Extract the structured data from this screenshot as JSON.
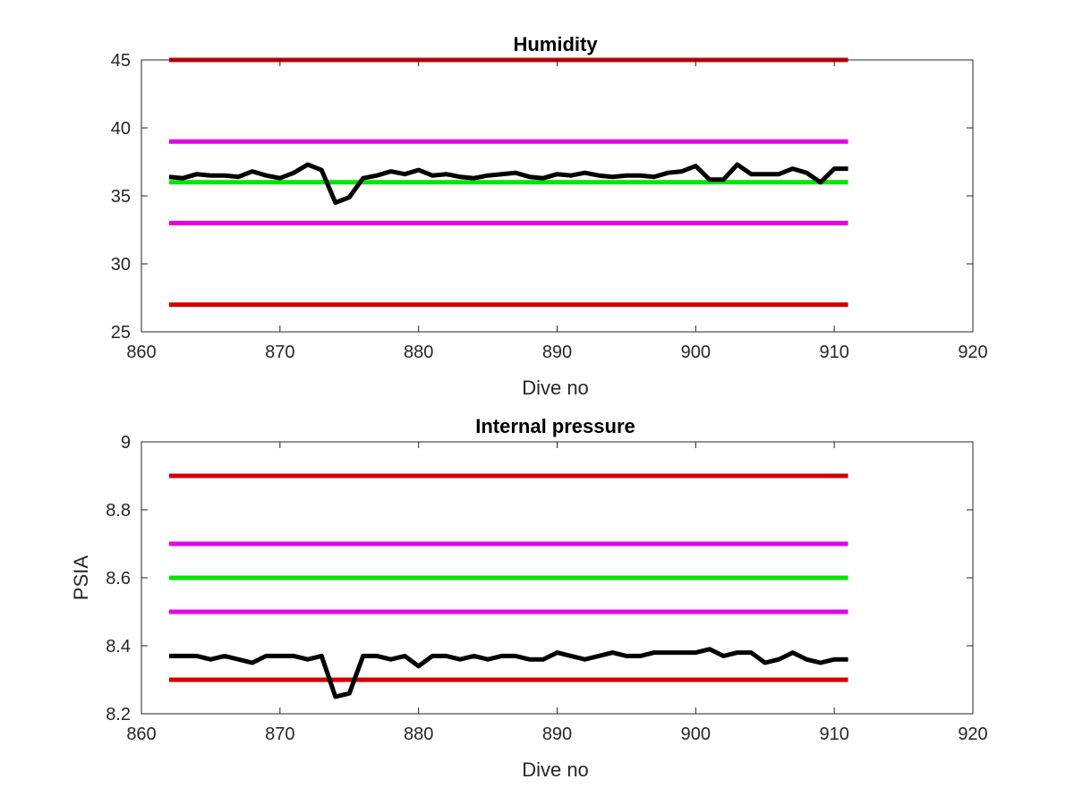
{
  "chart_data": [
    {
      "type": "line",
      "title": "Humidity",
      "xlabel": "Dive no",
      "ylabel": "",
      "xlim": [
        860,
        920
      ],
      "ylim": [
        25,
        45
      ],
      "xticks": [
        860,
        870,
        880,
        890,
        900,
        910,
        920
      ],
      "xtick_labels": [
        "860",
        "870",
        "880",
        "890",
        "900",
        "910",
        "920"
      ],
      "yticks": [
        25,
        30,
        35,
        40,
        45
      ],
      "ytick_labels": [
        "25",
        "30",
        "35",
        "40",
        "45"
      ],
      "grid": false,
      "series": [
        {
          "color": "#d40000",
          "x": [
            862,
            911
          ],
          "values": [
            45,
            45
          ]
        },
        {
          "color": "#e600e6",
          "x": [
            862,
            911
          ],
          "values": [
            39,
            39
          ]
        },
        {
          "color": "#00e600",
          "x": [
            862,
            911
          ],
          "values": [
            36,
            36
          ]
        },
        {
          "color": "#e600e6",
          "x": [
            862,
            911
          ],
          "values": [
            33,
            33
          ]
        },
        {
          "color": "#d40000",
          "x": [
            862,
            911
          ],
          "values": [
            27,
            27
          ]
        },
        {
          "color": "#000000",
          "x": [
            862,
            863,
            864,
            865,
            866,
            867,
            868,
            869,
            870,
            871,
            872,
            873,
            874,
            875,
            876,
            877,
            878,
            879,
            880,
            881,
            882,
            883,
            884,
            885,
            886,
            887,
            888,
            889,
            890,
            891,
            892,
            893,
            894,
            895,
            896,
            897,
            898,
            899,
            900,
            901,
            902,
            903,
            904,
            905,
            906,
            907,
            908,
            909,
            910,
            911
          ],
          "values": [
            36.4,
            36.3,
            36.6,
            36.5,
            36.5,
            36.4,
            36.8,
            36.5,
            36.3,
            36.7,
            37.3,
            36.9,
            34.5,
            34.9,
            36.3,
            36.5,
            36.8,
            36.6,
            36.9,
            36.5,
            36.6,
            36.4,
            36.3,
            36.5,
            36.6,
            36.7,
            36.4,
            36.3,
            36.6,
            36.5,
            36.7,
            36.5,
            36.4,
            36.5,
            36.5,
            36.4,
            36.7,
            36.8,
            37.2,
            36.2,
            36.2,
            37.3,
            36.6,
            36.6,
            36.6,
            37.0,
            36.7,
            36.0,
            37.0,
            37.0
          ]
        }
      ]
    },
    {
      "type": "line",
      "title": "Internal pressure",
      "xlabel": "Dive no",
      "ylabel": "PSIA",
      "xlim": [
        860,
        920
      ],
      "ylim": [
        8.2,
        9
      ],
      "xticks": [
        860,
        870,
        880,
        890,
        900,
        910,
        920
      ],
      "xtick_labels": [
        "860",
        "870",
        "880",
        "890",
        "900",
        "910",
        "920"
      ],
      "yticks": [
        8.2,
        8.4,
        8.6,
        8.8,
        9
      ],
      "ytick_labels": [
        "8.2",
        "8.4",
        "8.6",
        "8.8",
        "9"
      ],
      "grid": false,
      "series": [
        {
          "color": "#d40000",
          "x": [
            862,
            911
          ],
          "values": [
            8.9,
            8.9
          ]
        },
        {
          "color": "#e600e6",
          "x": [
            862,
            911
          ],
          "values": [
            8.7,
            8.7
          ]
        },
        {
          "color": "#00e600",
          "x": [
            862,
            911
          ],
          "values": [
            8.6,
            8.6
          ]
        },
        {
          "color": "#e600e6",
          "x": [
            862,
            911
          ],
          "values": [
            8.5,
            8.5
          ]
        },
        {
          "color": "#d40000",
          "x": [
            862,
            911
          ],
          "values": [
            8.3,
            8.3
          ]
        },
        {
          "color": "#000000",
          "x": [
            862,
            863,
            864,
            865,
            866,
            867,
            868,
            869,
            870,
            871,
            872,
            873,
            874,
            875,
            876,
            877,
            878,
            879,
            880,
            881,
            882,
            883,
            884,
            885,
            886,
            887,
            888,
            889,
            890,
            891,
            892,
            893,
            894,
            895,
            896,
            897,
            898,
            899,
            900,
            901,
            902,
            903,
            904,
            905,
            906,
            907,
            908,
            909,
            910,
            911
          ],
          "values": [
            8.37,
            8.37,
            8.37,
            8.36,
            8.37,
            8.36,
            8.35,
            8.37,
            8.37,
            8.37,
            8.36,
            8.37,
            8.25,
            8.26,
            8.37,
            8.37,
            8.36,
            8.37,
            8.34,
            8.37,
            8.37,
            8.36,
            8.37,
            8.36,
            8.37,
            8.37,
            8.36,
            8.36,
            8.38,
            8.37,
            8.36,
            8.37,
            8.38,
            8.37,
            8.37,
            8.38,
            8.38,
            8.38,
            8.38,
            8.39,
            8.37,
            8.38,
            8.38,
            8.35,
            8.36,
            8.38,
            8.36,
            8.35,
            8.36,
            8.36
          ]
        }
      ]
    }
  ]
}
